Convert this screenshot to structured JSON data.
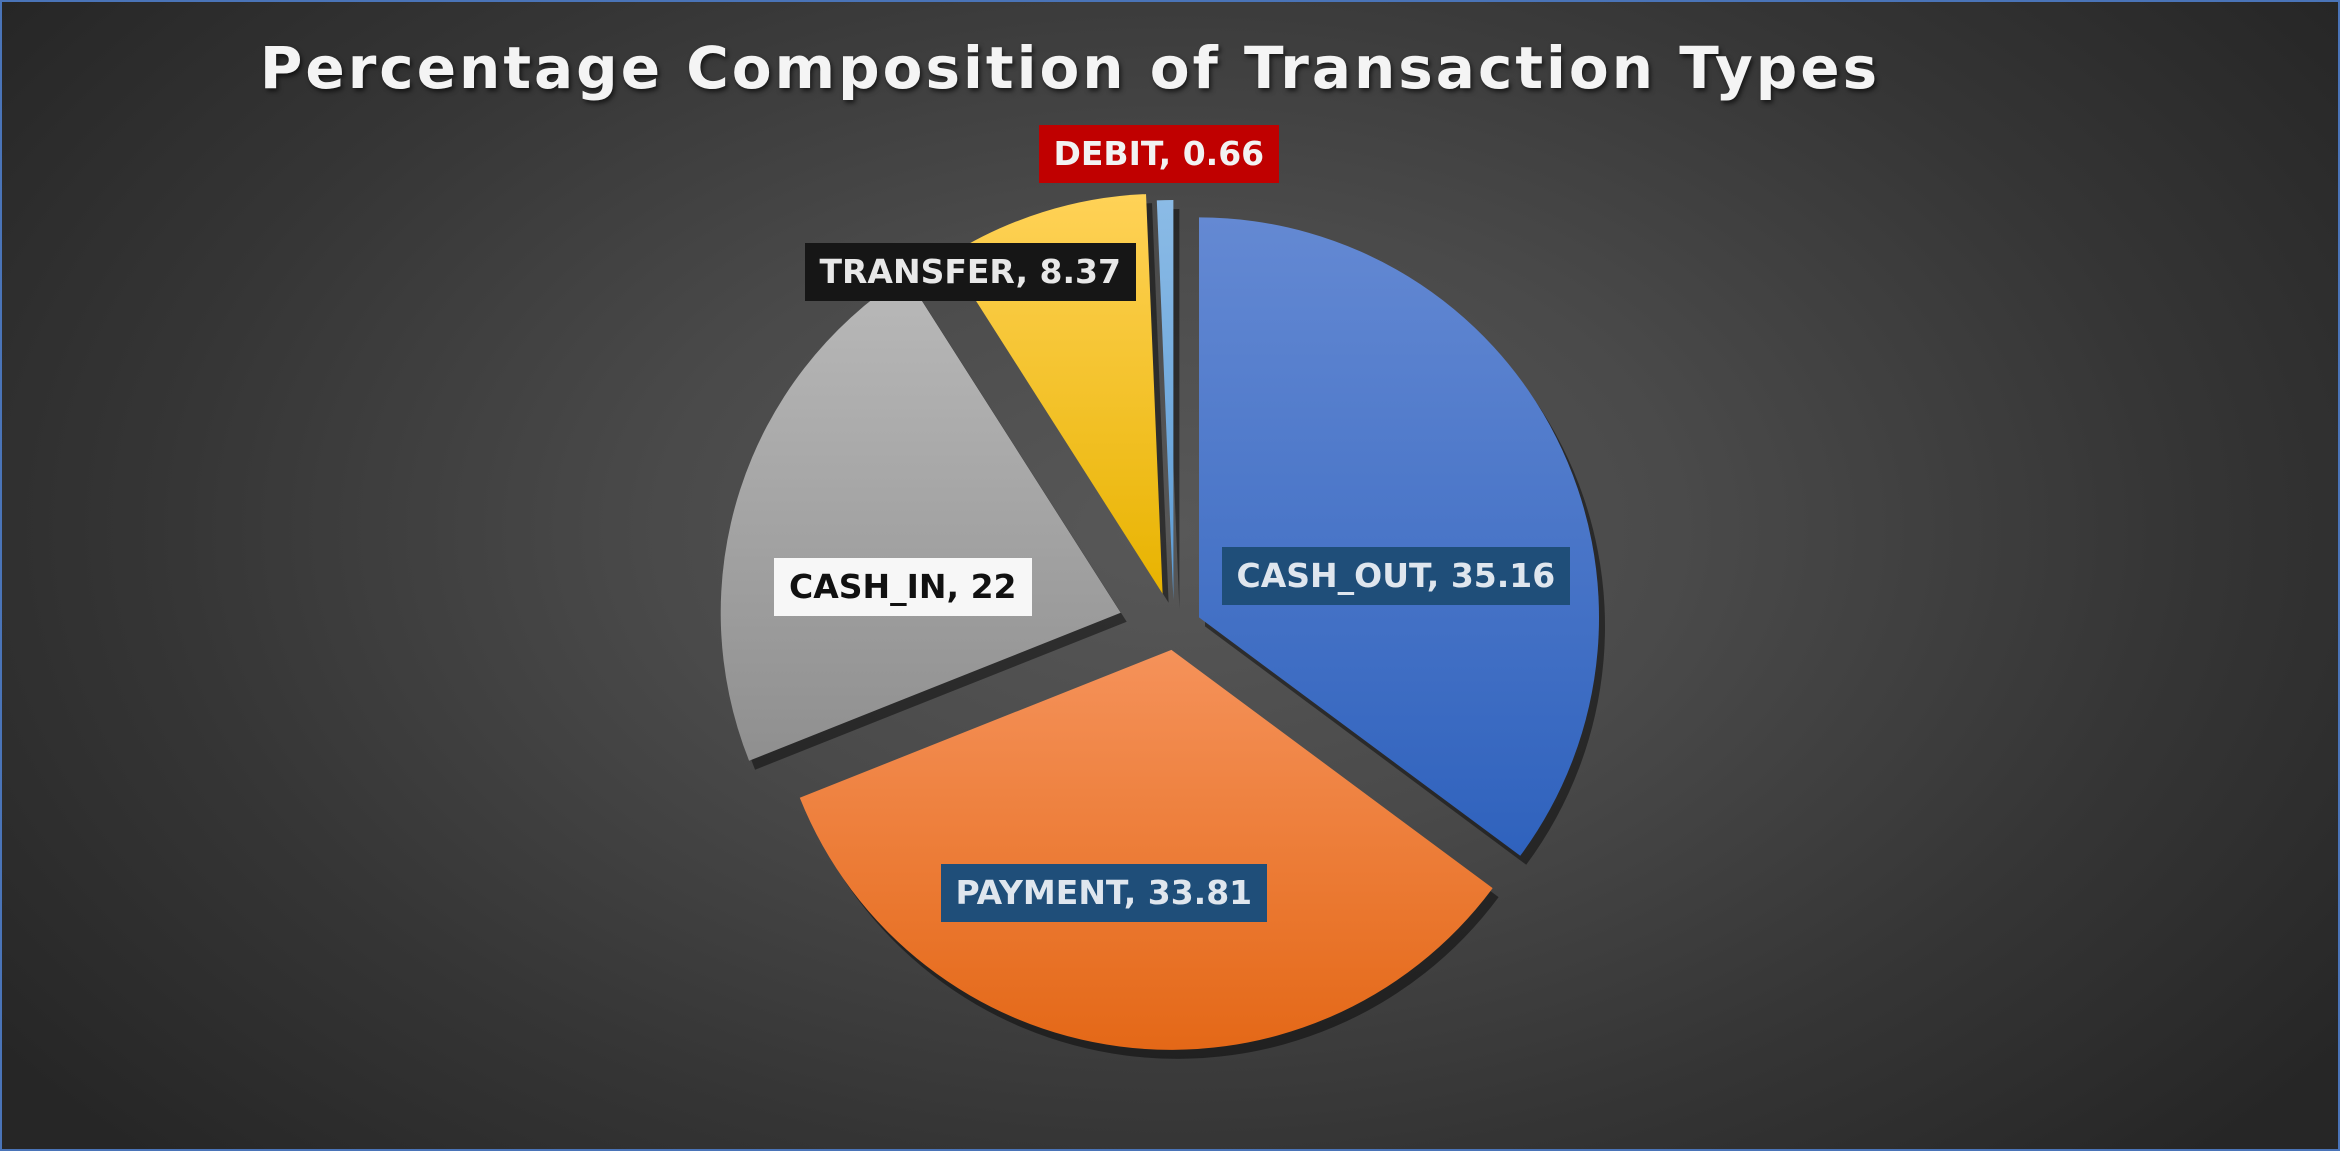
{
  "chart_data": {
    "type": "pie",
    "title": "Percentage Composition of Transaction Types",
    "slices": [
      {
        "label": "CASH_OUT",
        "value": 35.16,
        "label_text": "CASH_OUT, 35.16",
        "color_top": "#6489d3",
        "color_bottom": "#2f62bd",
        "label_bg": "#1f4e79",
        "label_fg": "#dfe6ee"
      },
      {
        "label": "PAYMENT",
        "value": 33.81,
        "label_text": "PAYMENT, 33.81",
        "color_top": "#f5925a",
        "color_bottom": "#e46817",
        "label_bg": "#1f4e79",
        "label_fg": "#dfe6ee"
      },
      {
        "label": "CASH_IN",
        "value": 22,
        "label_text": "CASH_IN, 22",
        "color_top": "#b9b9b9",
        "color_bottom": "#8f8f8f",
        "label_bg": "#f7f7f7",
        "label_fg": "#111111"
      },
      {
        "label": "TRANSFER",
        "value": 8.37,
        "label_text": "TRANSFER, 8.37",
        "color_top": "#ffd257",
        "color_bottom": "#e8b300",
        "label_bg": "#161616",
        "label_fg": "#e8e8e8"
      },
      {
        "label": "DEBIT",
        "value": 0.66,
        "label_text": "DEBIT, 0.66",
        "color_top": "#8bbbe6",
        "color_bottom": "#5b9bd5",
        "label_bg": "#c00000",
        "label_fg": "#f2f2f2"
      }
    ],
    "legend": "none",
    "start_angle_deg": 0,
    "direction": "clockwise",
    "exploded": true
  }
}
